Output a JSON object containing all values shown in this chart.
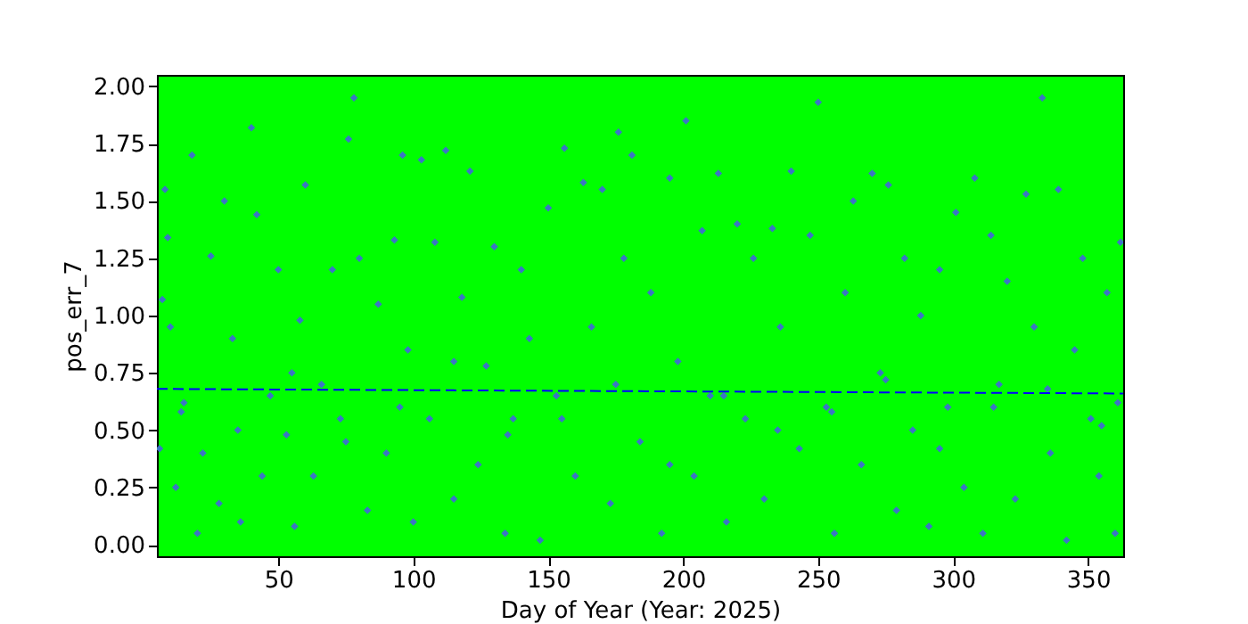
{
  "chart_data": {
    "type": "scatter",
    "xlabel": "Day of Year (Year: 2025)",
    "ylabel": "pos_err_7",
    "xlim": [
      5,
      363
    ],
    "ylim": [
      -0.05,
      2.05
    ],
    "xticks": [
      50,
      100,
      150,
      200,
      250,
      300,
      350
    ],
    "yticks": [
      {
        "value": 0,
        "label": "0.00"
      },
      {
        "value": 0.25,
        "label": "0.25"
      },
      {
        "value": 0.5,
        "label": "0.50"
      },
      {
        "value": 0.75,
        "label": "0.75"
      },
      {
        "value": 1,
        "label": "1.00"
      },
      {
        "value": 1.25,
        "label": "1.25"
      },
      {
        "value": 1.5,
        "label": "1.50"
      },
      {
        "value": 1.75,
        "label": "1.75"
      },
      {
        "value": 2,
        "label": "2.00"
      }
    ],
    "grid": false,
    "legend": false,
    "marker": "diamond",
    "series": [
      {
        "type": "scatter",
        "color": "#3b76c4",
        "x": [
          6,
          7,
          8,
          9,
          10,
          12,
          14,
          18,
          20,
          22,
          25,
          28,
          30,
          33,
          36,
          40,
          42,
          44,
          47,
          50,
          53,
          56,
          58,
          60,
          63,
          66,
          70,
          73,
          76,
          78,
          80,
          83,
          87,
          90,
          93,
          96,
          98,
          100,
          103,
          106,
          108,
          112,
          115,
          118,
          121,
          124,
          127,
          130,
          134,
          137,
          140,
          143,
          147,
          150,
          153,
          156,
          160,
          163,
          166,
          170,
          173,
          176,
          178,
          181,
          184,
          188,
          192,
          195,
          198,
          201,
          204,
          207,
          210,
          213,
          216,
          220,
          223,
          226,
          230,
          233,
          236,
          240,
          243,
          247,
          250,
          253,
          256,
          260,
          263,
          266,
          270,
          273,
          276,
          279,
          282,
          285,
          288,
          291,
          295,
          298,
          301,
          304,
          308,
          311,
          314,
          317,
          320,
          323,
          327,
          330,
          333,
          336,
          339,
          342,
          345,
          348,
          351,
          354,
          357,
          360,
          362,
          361,
          15,
          35,
          55,
          75,
          95,
          115,
          135,
          155,
          175,
          195,
          215,
          235,
          255,
          275,
          295,
          315,
          335,
          355
        ],
        "values": [
          0.42,
          1.07,
          1.55,
          1.34,
          0.95,
          0.25,
          0.58,
          1.7,
          0.05,
          0.4,
          1.26,
          0.18,
          1.5,
          0.9,
          0.1,
          1.82,
          1.44,
          0.3,
          0.65,
          1.2,
          0.48,
          0.08,
          0.98,
          1.57,
          0.3,
          0.7,
          1.2,
          0.55,
          1.77,
          1.95,
          1.25,
          0.15,
          1.05,
          0.4,
          1.33,
          1.7,
          0.85,
          0.1,
          1.68,
          0.55,
          1.32,
          1.72,
          0.2,
          1.08,
          1.63,
          0.35,
          0.78,
          1.3,
          0.05,
          0.55,
          1.2,
          0.9,
          0.02,
          1.47,
          0.65,
          1.73,
          0.3,
          1.58,
          0.95,
          1.55,
          0.18,
          1.8,
          1.25,
          1.7,
          0.45,
          1.1,
          0.05,
          1.6,
          0.8,
          1.85,
          0.3,
          1.37,
          0.65,
          1.62,
          0.1,
          1.4,
          0.55,
          1.25,
          0.2,
          1.38,
          0.95,
          1.63,
          0.42,
          1.35,
          1.93,
          0.6,
          0.05,
          1.1,
          1.5,
          0.35,
          1.62,
          0.75,
          1.57,
          0.15,
          1.25,
          0.5,
          1.0,
          0.08,
          1.2,
          0.6,
          1.45,
          0.25,
          1.6,
          0.05,
          1.35,
          0.7,
          1.15,
          0.2,
          1.53,
          0.95,
          1.95,
          0.4,
          1.55,
          0.02,
          0.85,
          1.25,
          0.55,
          0.3,
          1.1,
          0.05,
          1.32,
          0.62,
          0.62,
          0.5,
          0.75,
          0.45,
          0.6,
          0.8,
          0.48,
          0.55,
          0.7,
          0.35,
          0.65,
          0.5,
          0.58,
          0.72,
          0.42,
          0.6,
          0.68,
          0.52
        ]
      },
      {
        "type": "line",
        "color": "#0000ff",
        "line_style": "dashed",
        "marker": "none",
        "x": [
          5,
          363
        ],
        "values": [
          0.68,
          0.66
        ]
      }
    ]
  }
}
